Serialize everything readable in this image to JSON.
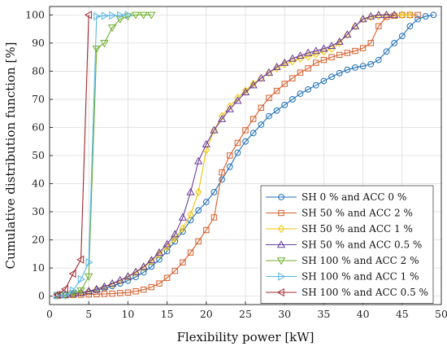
{
  "chart_data": {
    "type": "line",
    "title": "",
    "xlabel": "Flexibility power [kW]",
    "ylabel": "Cumulative distribution function [%]",
    "xlim": [
      0,
      50
    ],
    "ylim": [
      -3,
      103
    ],
    "xticks": [
      0,
      5,
      10,
      15,
      20,
      25,
      30,
      35,
      40,
      45,
      50
    ],
    "yticks": [
      0,
      10,
      20,
      30,
      40,
      50,
      60,
      70,
      80,
      90,
      100
    ],
    "grid": true,
    "legend_position": "bottom-right",
    "series": [
      {
        "name": "SH 0 % and ACC 0 %",
        "color": "#1f6fb5",
        "marker": "circle",
        "x": [
          1,
          2,
          3,
          4,
          5,
          6,
          7,
          8,
          9,
          10,
          11,
          12,
          13,
          14,
          15,
          16,
          17,
          18,
          19,
          20,
          21,
          22,
          23,
          24,
          25,
          26,
          27,
          28,
          29,
          30,
          31,
          32,
          33,
          34,
          35,
          36,
          37,
          38,
          39,
          40,
          41,
          42,
          43,
          44,
          45,
          46,
          47,
          48,
          49
        ],
        "y": [
          0.3,
          0.5,
          0.8,
          1.1,
          1.5,
          2.1,
          2.8,
          3.6,
          4.5,
          5.5,
          6.8,
          8.5,
          10.5,
          13,
          16,
          19.5,
          23,
          27,
          30.5,
          33.5,
          37,
          41.5,
          46,
          51,
          55,
          58,
          61,
          64,
          66,
          68,
          70,
          72,
          73.5,
          75,
          76.5,
          78,
          79.3,
          80.5,
          81.3,
          81.8,
          82.5,
          84,
          87,
          90,
          92.5,
          96,
          98.5,
          99.5,
          100
        ]
      },
      {
        "name": "SH 50 % and ACC 2 %",
        "color": "#d55e2a",
        "marker": "square",
        "x": [
          1,
          2,
          3,
          4,
          5,
          6,
          7,
          8,
          9,
          10,
          11,
          12,
          13,
          14,
          15,
          16,
          17,
          18,
          19,
          20,
          21,
          22,
          23,
          24,
          25,
          26,
          27,
          28,
          29,
          30,
          31,
          32,
          33,
          34,
          35,
          36,
          37,
          38,
          39,
          40,
          41,
          42,
          43,
          44,
          45,
          46,
          47
        ],
        "y": [
          0.2,
          0.3,
          0.4,
          0.5,
          0.6,
          0.7,
          0.8,
          0.9,
          1.1,
          1.3,
          1.7,
          2.3,
          3.2,
          4.5,
          6.5,
          9,
          12,
          15.5,
          19.5,
          23.5,
          28,
          44,
          50,
          54.5,
          59,
          63,
          67,
          70.5,
          73,
          75.5,
          77.5,
          79.5,
          81,
          83,
          84,
          85,
          85.8,
          86.5,
          87.2,
          88.2,
          90,
          96,
          99.3,
          99.7,
          100,
          100,
          100
        ]
      },
      {
        "name": "SH 50 % and ACC 1 %",
        "color": "#f2c200",
        "marker": "diamond",
        "x": [
          1,
          2,
          3,
          4,
          5,
          6,
          7,
          8,
          9,
          10,
          11,
          12,
          13,
          14,
          15,
          16,
          17,
          18,
          19,
          20,
          21,
          22,
          23,
          24,
          25,
          26,
          27,
          28,
          29,
          30,
          31,
          32,
          33,
          34,
          35,
          36,
          37,
          38,
          39,
          40,
          41,
          42,
          43,
          44,
          45,
          46
        ],
        "y": [
          0.3,
          0.5,
          0.8,
          1.2,
          1.8,
          2.5,
          3.3,
          4.3,
          5.5,
          6.8,
          8.3,
          10.2,
          12.3,
          14.8,
          17.5,
          20.5,
          24,
          29,
          37,
          52,
          59,
          64,
          67.5,
          70.5,
          73,
          75.5,
          77.5,
          79.5,
          81,
          82.5,
          83.5,
          84.5,
          85.2,
          86,
          87,
          88,
          90,
          93,
          96,
          98.5,
          99.3,
          99.7,
          100,
          100,
          100,
          100
        ]
      },
      {
        "name": "SH 50 % and ACC 0.5 %",
        "color": "#6a3d9a",
        "marker": "triangle-up",
        "x": [
          1,
          2,
          3,
          4,
          5,
          6,
          7,
          8,
          9,
          10,
          11,
          12,
          13,
          14,
          15,
          16,
          17,
          18,
          19,
          20,
          21,
          22,
          23,
          24,
          25,
          26,
          27,
          28,
          29,
          30,
          31,
          32,
          33,
          34,
          35,
          36,
          37,
          38,
          39,
          40,
          41,
          42,
          43,
          44
        ],
        "y": [
          0.3,
          0.5,
          0.8,
          1.2,
          1.8,
          2.5,
          3.4,
          4.5,
          5.7,
          7,
          8.6,
          10.5,
          12.8,
          15.5,
          18.5,
          22,
          28,
          37,
          48,
          54,
          59,
          63,
          66.5,
          69.5,
          72.5,
          75,
          77.5,
          79.5,
          81.5,
          83,
          84.5,
          85.5,
          86.5,
          87.2,
          88,
          89,
          90.5,
          93,
          96,
          98.5,
          99.5,
          100,
          100,
          100
        ]
      },
      {
        "name": "SH 100 % and ACC 2 %",
        "color": "#6fae2e",
        "marker": "triangle-down",
        "x": [
          1,
          2,
          3,
          4,
          5,
          6,
          7,
          8,
          9,
          10,
          11,
          12,
          13
        ],
        "y": [
          0.2,
          0.3,
          1,
          2,
          7,
          88,
          90,
          95.5,
          98.5,
          99.5,
          100,
          100,
          100
        ]
      },
      {
        "name": "SH 100 % and ACC 1 %",
        "color": "#57b6e6",
        "marker": "triangle-right",
        "x": [
          1,
          2,
          3,
          4,
          5,
          6,
          7,
          8,
          9,
          10
        ],
        "y": [
          0.2,
          0.5,
          2,
          6,
          12,
          99.5,
          99.7,
          99.8,
          99.9,
          100
        ]
      },
      {
        "name": "SH 100 % and ACC 0.5 %",
        "color": "#a12830",
        "marker": "triangle-left",
        "x": [
          1,
          2,
          3,
          4,
          5
        ],
        "y": [
          0.5,
          2.5,
          8,
          13,
          100
        ]
      }
    ]
  }
}
